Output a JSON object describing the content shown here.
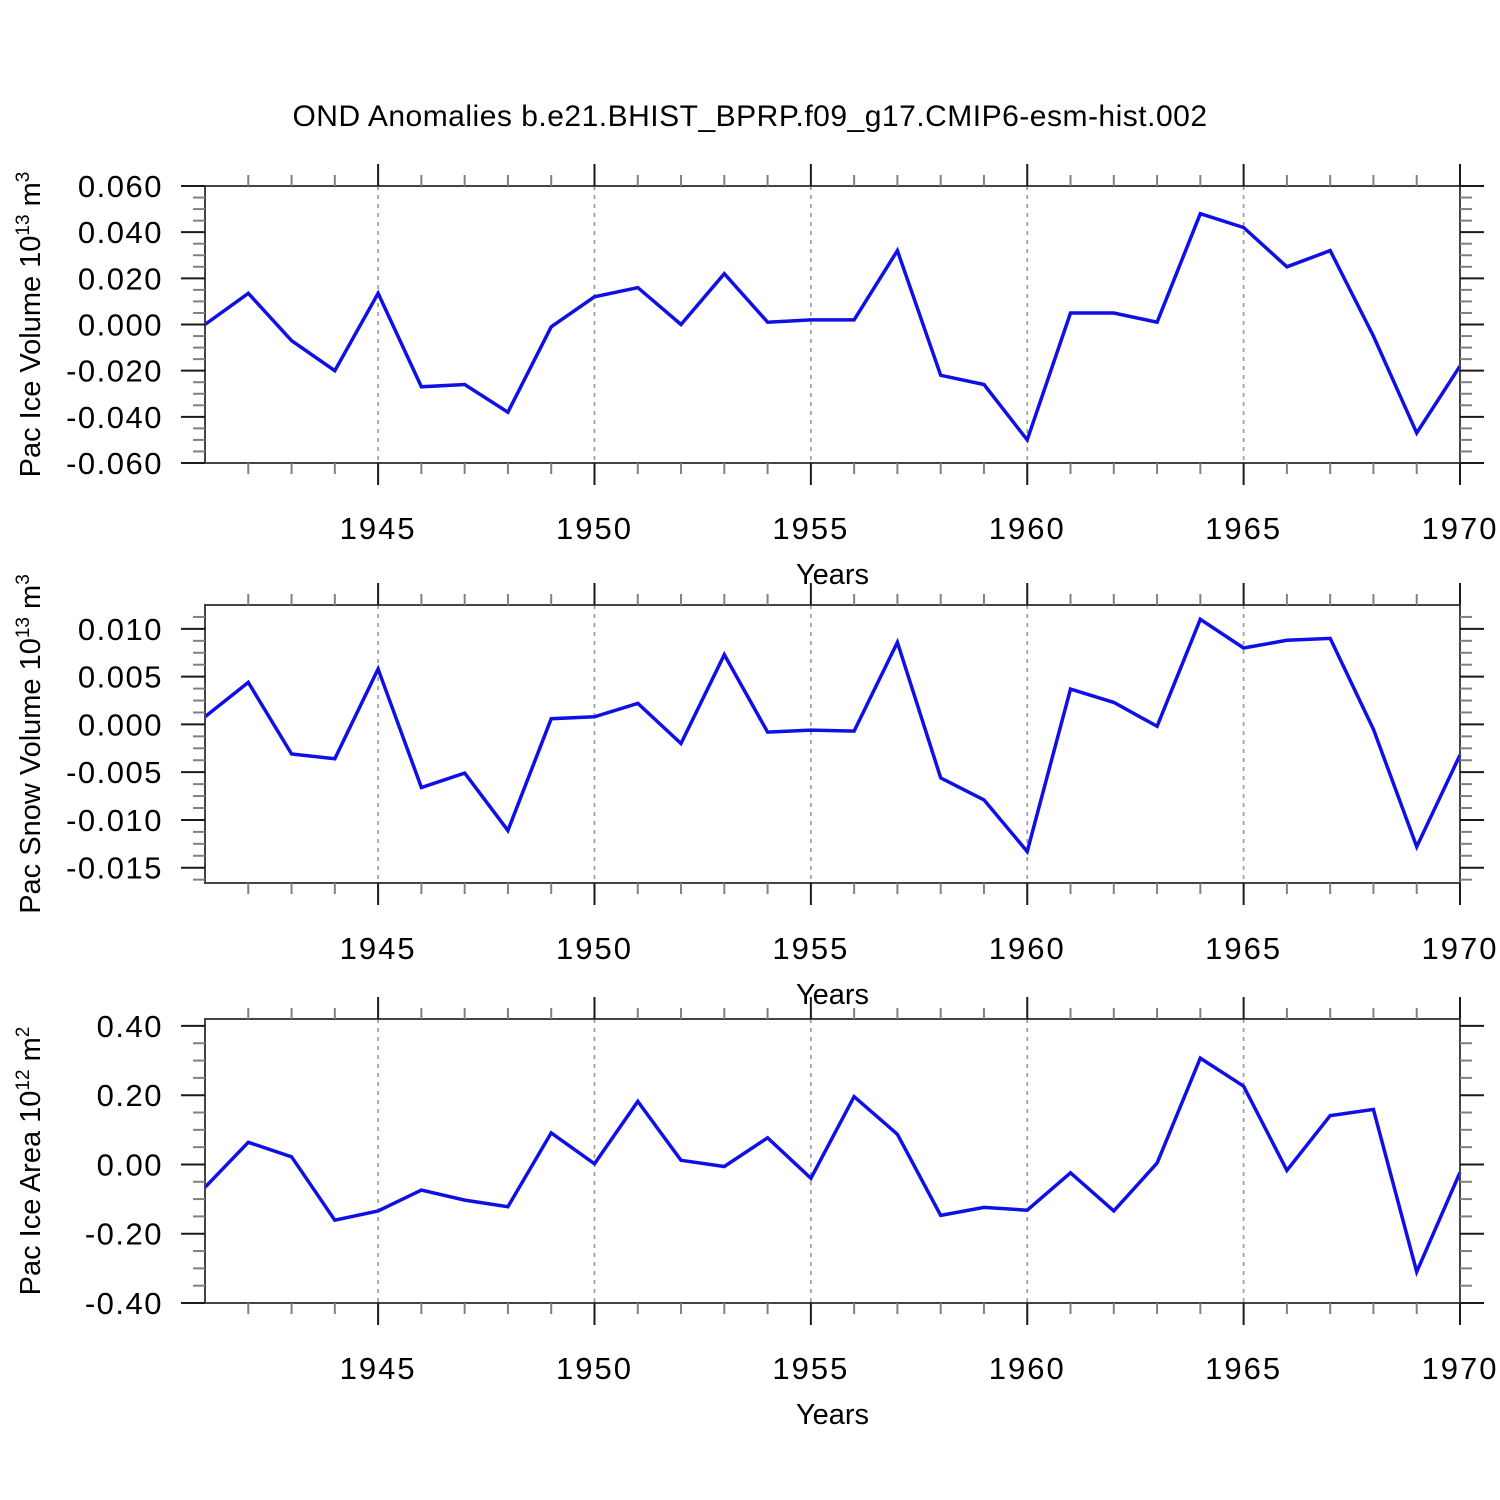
{
  "title": "OND Anomalies b.e21.BHIST_BPRP.f09_g17.CMIP6-esm-hist.002",
  "colors": {
    "line": "#0f0fe6",
    "axis_border": "#444444",
    "major_tick": "#1a1a1a",
    "minor_tick": "#808080",
    "grid_dash": "#999999",
    "text": "#000000",
    "background": "#ffffff"
  },
  "chart_data": [
    {
      "type": "line",
      "id": "pac-ice-volume",
      "ylabel_text": "Pac Ice Volume 10^13 m^3",
      "ylabel_parts": [
        {
          "t": "Pac Ice Volume 10"
        },
        {
          "sup": "13"
        },
        {
          "t": " m"
        },
        {
          "sup": "3"
        }
      ],
      "xlabel": "Years",
      "x": [
        1941,
        1942,
        1943,
        1944,
        1945,
        1946,
        1947,
        1948,
        1949,
        1950,
        1951,
        1952,
        1953,
        1954,
        1955,
        1956,
        1957,
        1958,
        1959,
        1960,
        1961,
        1962,
        1963,
        1964,
        1965,
        1966,
        1967,
        1968,
        1969,
        1970
      ],
      "values": [
        0.0,
        0.0135,
        -0.007,
        -0.02,
        0.0135,
        -0.027,
        -0.026,
        -0.038,
        -0.001,
        0.012,
        0.016,
        0.0,
        0.022,
        0.001,
        0.002,
        0.002,
        0.032,
        -0.022,
        -0.026,
        -0.05,
        0.005,
        0.005,
        0.001,
        0.048,
        0.042,
        0.025,
        0.032,
        -0.005,
        -0.047,
        -0.018
      ],
      "xlim": [
        1941,
        1970
      ],
      "ylim": [
        -0.06,
        0.06
      ],
      "yticks": [
        {
          "v": 0.06,
          "label": "0.060"
        },
        {
          "v": 0.04,
          "label": "0.040"
        },
        {
          "v": 0.02,
          "label": "0.020"
        },
        {
          "v": 0.0,
          "label": "0.000"
        },
        {
          "v": -0.02,
          "label": "-0.020"
        },
        {
          "v": -0.04,
          "label": "-0.040"
        },
        {
          "v": -0.06,
          "label": "-0.060"
        }
      ],
      "y_minor_step": 0.005,
      "xticks": [
        {
          "v": 1945,
          "label": "1945"
        },
        {
          "v": 1950,
          "label": "1950"
        },
        {
          "v": 1955,
          "label": "1955"
        },
        {
          "v": 1960,
          "label": "1960"
        },
        {
          "v": 1965,
          "label": "1965"
        },
        {
          "v": 1970,
          "label": "1970"
        }
      ],
      "x_minor_step": 1,
      "grid_x": [
        1945,
        1950,
        1955,
        1960,
        1965
      ],
      "grid_style": "vertical-dashed",
      "legend": "none"
    },
    {
      "type": "line",
      "id": "pac-snow-volume",
      "ylabel_text": "Pac Snow Volume 10^13 m^3",
      "ylabel_parts": [
        {
          "t": "Pac Snow Volume 10"
        },
        {
          "sup": "13"
        },
        {
          "t": " m"
        },
        {
          "sup": "3"
        }
      ],
      "xlabel": "Years",
      "x": [
        1941,
        1942,
        1943,
        1944,
        1945,
        1946,
        1947,
        1948,
        1949,
        1950,
        1951,
        1952,
        1953,
        1954,
        1955,
        1956,
        1957,
        1958,
        1959,
        1960,
        1961,
        1962,
        1963,
        1964,
        1965,
        1966,
        1967,
        1968,
        1969,
        1970
      ],
      "values": [
        0.0008,
        0.0044,
        -0.0031,
        -0.0036,
        0.0058,
        -0.0066,
        -0.0051,
        -0.0111,
        0.0006,
        0.0008,
        0.0022,
        -0.002,
        0.0073,
        -0.0008,
        -0.0006,
        -0.0007,
        0.0086,
        -0.0056,
        -0.0079,
        -0.0133,
        0.0037,
        0.0023,
        -0.0002,
        0.011,
        0.008,
        0.0088,
        0.009,
        -0.0005,
        -0.0128,
        -0.0032
      ],
      "xlim": [
        1941,
        1970
      ],
      "ylim": [
        -0.0166,
        0.0125
      ],
      "yticks": [
        {
          "v": 0.01,
          "label": "0.010"
        },
        {
          "v": 0.005,
          "label": "0.005"
        },
        {
          "v": 0.0,
          "label": "0.000"
        },
        {
          "v": -0.005,
          "label": "-0.005"
        },
        {
          "v": -0.01,
          "label": "-0.010"
        },
        {
          "v": -0.015,
          "label": "-0.015"
        }
      ],
      "y_minor_step": 0.00125,
      "xticks": [
        {
          "v": 1945,
          "label": "1945"
        },
        {
          "v": 1950,
          "label": "1950"
        },
        {
          "v": 1955,
          "label": "1955"
        },
        {
          "v": 1960,
          "label": "1960"
        },
        {
          "v": 1965,
          "label": "1965"
        },
        {
          "v": 1970,
          "label": "1970"
        }
      ],
      "x_minor_step": 1,
      "grid_x": [
        1945,
        1950,
        1955,
        1960,
        1965
      ],
      "grid_style": "vertical-dashed",
      "legend": "none"
    },
    {
      "type": "line",
      "id": "pac-ice-area",
      "ylabel_text": "Pac Ice Area 10^12 m^2",
      "ylabel_parts": [
        {
          "t": "Pac Ice Area 10"
        },
        {
          "sup": "12"
        },
        {
          "t": " m"
        },
        {
          "sup": "2"
        }
      ],
      "xlabel": "Years",
      "x": [
        1941,
        1942,
        1943,
        1944,
        1945,
        1946,
        1947,
        1948,
        1949,
        1950,
        1951,
        1952,
        1953,
        1954,
        1955,
        1956,
        1957,
        1958,
        1959,
        1960,
        1961,
        1962,
        1963,
        1964,
        1965,
        1966,
        1967,
        1968,
        1969,
        1970
      ],
      "values": [
        -0.066,
        0.064,
        0.022,
        -0.161,
        -0.134,
        -0.074,
        -0.103,
        -0.122,
        0.091,
        0.002,
        0.182,
        0.012,
        -0.006,
        0.077,
        -0.04,
        0.196,
        0.087,
        -0.147,
        -0.124,
        -0.132,
        -0.024,
        -0.134,
        0.004,
        0.307,
        0.226,
        -0.017,
        0.141,
        0.159,
        -0.31,
        -0.023
      ],
      "xlim": [
        1941,
        1970
      ],
      "ylim": [
        -0.4,
        0.42
      ],
      "yticks": [
        {
          "v": 0.4,
          "label": "0.40"
        },
        {
          "v": 0.2,
          "label": "0.20"
        },
        {
          "v": 0.0,
          "label": "0.00"
        },
        {
          "v": -0.2,
          "label": "-0.20"
        },
        {
          "v": -0.4,
          "label": "-0.40"
        }
      ],
      "y_minor_step": 0.05,
      "xticks": [
        {
          "v": 1945,
          "label": "1945"
        },
        {
          "v": 1950,
          "label": "1950"
        },
        {
          "v": 1955,
          "label": "1955"
        },
        {
          "v": 1960,
          "label": "1960"
        },
        {
          "v": 1965,
          "label": "1965"
        },
        {
          "v": 1970,
          "label": "1970"
        }
      ],
      "x_minor_step": 1,
      "grid_x": [
        1945,
        1950,
        1955,
        1960,
        1965
      ],
      "grid_style": "vertical-dashed",
      "legend": "none"
    }
  ]
}
